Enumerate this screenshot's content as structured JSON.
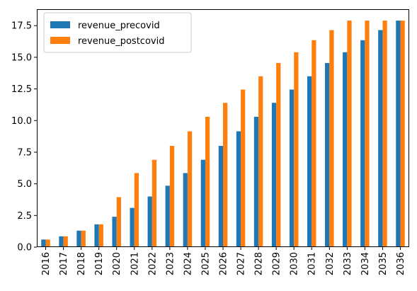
{
  "chart_data": {
    "type": "bar",
    "title": "",
    "xlabel": "",
    "ylabel": "",
    "categories": [
      "2016",
      "2017",
      "2018",
      "2019",
      "2020",
      "2021",
      "2022",
      "2023",
      "2024",
      "2025",
      "2026",
      "2027",
      "2028",
      "2029",
      "2030",
      "2031",
      "2032",
      "2033",
      "2034",
      "2035",
      "2036"
    ],
    "series": [
      {
        "name": "revenue_precovid",
        "color": "#1f77b4",
        "values": [
          0.6,
          0.85,
          1.3,
          1.8,
          2.4,
          3.1,
          4.0,
          4.85,
          5.85,
          6.9,
          8.0,
          9.15,
          10.3,
          11.4,
          12.45,
          13.5,
          14.55,
          15.4,
          16.35,
          17.15,
          17.9
        ]
      },
      {
        "name": "revenue_postcovid",
        "color": "#ff7f0e",
        "values": [
          0.6,
          0.85,
          1.3,
          1.8,
          3.95,
          5.85,
          6.9,
          8.0,
          9.15,
          10.3,
          11.4,
          12.45,
          13.5,
          14.55,
          15.4,
          16.35,
          17.15,
          17.9,
          17.9,
          17.9,
          17.9
        ]
      }
    ],
    "ylim": [
      0,
      18.8
    ],
    "yticks": [
      "0.0",
      "2.5",
      "5.0",
      "7.5",
      "10.0",
      "12.5",
      "15.0",
      "17.5"
    ],
    "grid": false,
    "legend_position": "upper-left"
  }
}
